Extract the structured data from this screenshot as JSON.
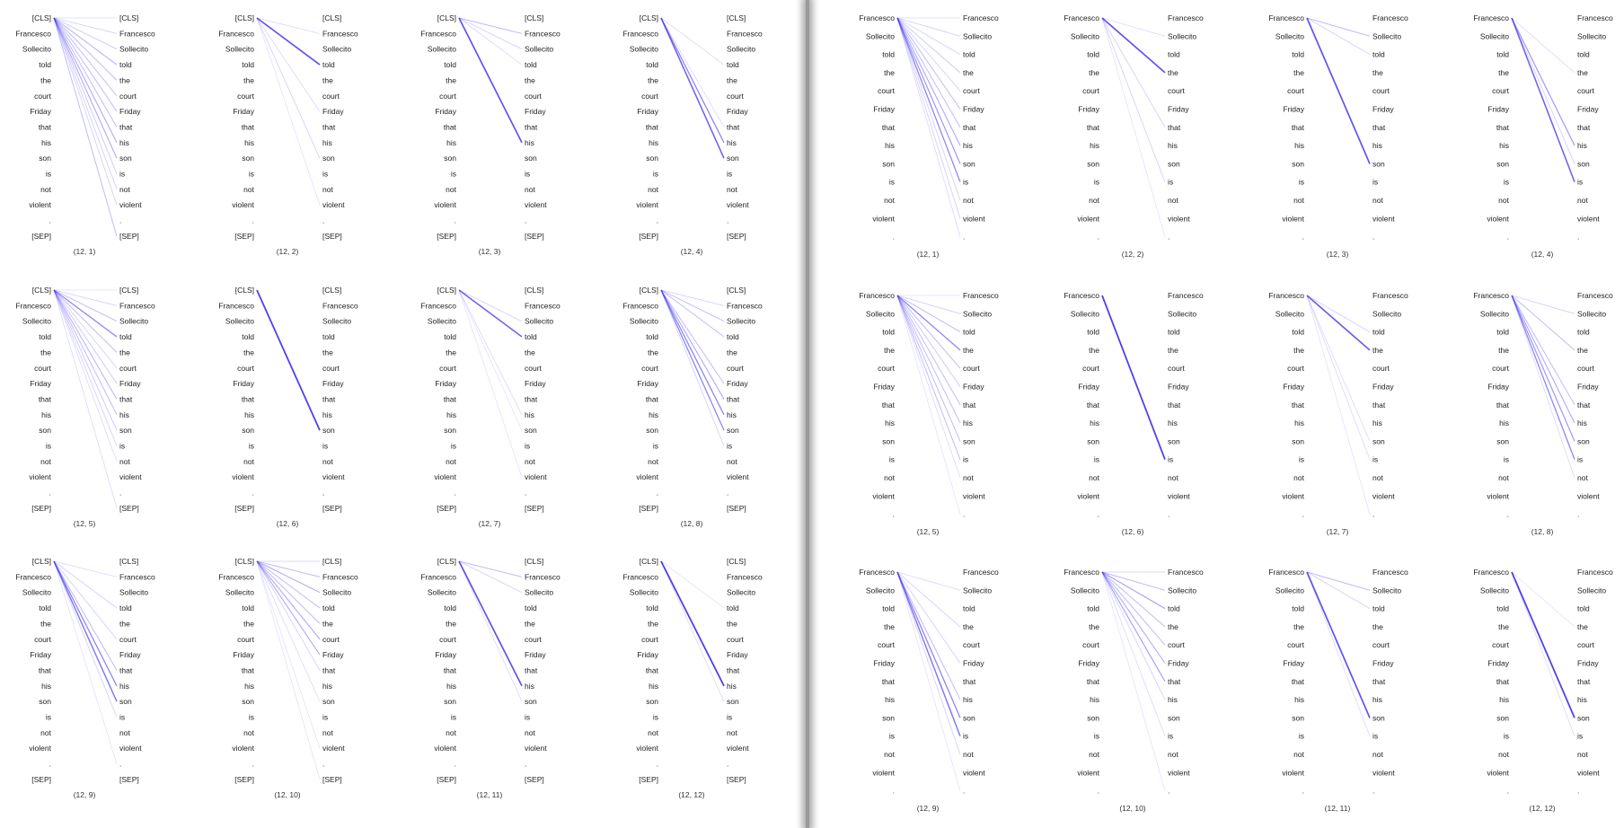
{
  "colors": {
    "edge": "#3b2cf0",
    "text": "#222222",
    "background": "#ffffff"
  },
  "left_tokens": [
    "[CLS]",
    "Francesco",
    "Sollecito",
    "told",
    "the",
    "court",
    "Friday",
    "that",
    "his",
    "son",
    "is",
    "not",
    "violent",
    ".",
    "[SEP]"
  ],
  "right_tokens": [
    "Francesco",
    "Sollecito",
    "told",
    "the",
    "court",
    "Friday",
    "that",
    "his",
    "son",
    "is",
    "not",
    "violent",
    "."
  ],
  "left_panels": [
    {
      "caption": "(12, 1)",
      "edges": [
        [
          0,
          0,
          0.15
        ],
        [
          0,
          1,
          0.2
        ],
        [
          0,
          2,
          0.25
        ],
        [
          0,
          3,
          0.35
        ],
        [
          0,
          4,
          0.3
        ],
        [
          0,
          5,
          0.3
        ],
        [
          0,
          6,
          0.3
        ],
        [
          0,
          7,
          0.3
        ],
        [
          0,
          8,
          0.4
        ],
        [
          0,
          9,
          0.4
        ],
        [
          0,
          10,
          0.25
        ],
        [
          0,
          11,
          0.2
        ],
        [
          0,
          12,
          0.2
        ],
        [
          0,
          14,
          0.3
        ]
      ]
    },
    {
      "caption": "(12, 2)",
      "edges": [
        [
          0,
          3,
          0.9
        ],
        [
          0,
          1,
          0.15
        ],
        [
          0,
          6,
          0.15
        ],
        [
          0,
          9,
          0.2
        ],
        [
          0,
          12,
          0.1
        ]
      ]
    },
    {
      "caption": "(12, 3)",
      "edges": [
        [
          0,
          8,
          0.9
        ],
        [
          0,
          1,
          0.3
        ],
        [
          0,
          2,
          0.2
        ],
        [
          0,
          3,
          0.15
        ]
      ]
    },
    {
      "caption": "(12, 4)",
      "edges": [
        [
          0,
          8,
          0.6
        ],
        [
          0,
          9,
          0.8
        ],
        [
          0,
          3,
          0.15
        ],
        [
          0,
          7,
          0.15
        ]
      ]
    },
    {
      "caption": "(12, 5)",
      "edges": [
        [
          0,
          0,
          0.1
        ],
        [
          0,
          1,
          0.2
        ],
        [
          0,
          2,
          0.3
        ],
        [
          0,
          3,
          0.6
        ],
        [
          0,
          4,
          0.3
        ],
        [
          0,
          5,
          0.2
        ],
        [
          0,
          6,
          0.25
        ],
        [
          0,
          7,
          0.35
        ],
        [
          0,
          8,
          0.3
        ],
        [
          0,
          9,
          0.25
        ],
        [
          0,
          10,
          0.2
        ],
        [
          0,
          11,
          0.15
        ],
        [
          0,
          14,
          0.15
        ]
      ]
    },
    {
      "caption": "(12, 6)",
      "edges": [
        [
          0,
          9,
          1.0
        ]
      ]
    },
    {
      "caption": "(12, 7)",
      "edges": [
        [
          0,
          3,
          0.8
        ],
        [
          0,
          2,
          0.2
        ],
        [
          0,
          8,
          0.15
        ],
        [
          0,
          9,
          0.1
        ],
        [
          0,
          12,
          0.1
        ]
      ]
    },
    {
      "caption": "(12, 8)",
      "edges": [
        [
          0,
          1,
          0.2
        ],
        [
          0,
          2,
          0.3
        ],
        [
          0,
          3,
          0.3
        ],
        [
          0,
          6,
          0.3
        ],
        [
          0,
          7,
          0.4
        ],
        [
          0,
          8,
          0.6
        ],
        [
          0,
          9,
          0.6
        ],
        [
          0,
          10,
          0.2
        ]
      ]
    },
    {
      "caption": "(12, 9)",
      "edges": [
        [
          0,
          1,
          0.15
        ],
        [
          0,
          3,
          0.2
        ],
        [
          0,
          5,
          0.2
        ],
        [
          0,
          7,
          0.3
        ],
        [
          0,
          8,
          0.6
        ],
        [
          0,
          9,
          0.7
        ],
        [
          0,
          10,
          0.2
        ],
        [
          0,
          13,
          0.1
        ]
      ]
    },
    {
      "caption": "(12, 10)",
      "edges": [
        [
          0,
          0,
          0.2
        ],
        [
          0,
          1,
          0.3
        ],
        [
          0,
          2,
          0.4
        ],
        [
          0,
          3,
          0.3
        ],
        [
          0,
          4,
          0.3
        ],
        [
          0,
          5,
          0.4
        ],
        [
          0,
          6,
          0.4
        ],
        [
          0,
          7,
          0.2
        ],
        [
          0,
          9,
          0.15
        ],
        [
          0,
          12,
          0.1
        ],
        [
          0,
          14,
          0.1
        ]
      ]
    },
    {
      "caption": "(12, 11)",
      "edges": [
        [
          0,
          8,
          0.9
        ],
        [
          0,
          1,
          0.3
        ],
        [
          0,
          2,
          0.2
        ],
        [
          0,
          9,
          0.15
        ]
      ]
    },
    {
      "caption": "(12, 12)",
      "edges": [
        [
          0,
          8,
          1.0
        ],
        [
          0,
          9,
          0.15
        ],
        [
          0,
          3,
          0.1
        ]
      ]
    }
  ],
  "right_panels": [
    {
      "caption": "(12, 1)",
      "edges": [
        [
          0,
          0,
          0.15
        ],
        [
          0,
          1,
          0.2
        ],
        [
          0,
          2,
          0.2
        ],
        [
          0,
          3,
          0.25
        ],
        [
          0,
          4,
          0.2
        ],
        [
          0,
          5,
          0.3
        ],
        [
          0,
          6,
          0.3
        ],
        [
          0,
          7,
          0.4
        ],
        [
          0,
          8,
          0.5
        ],
        [
          0,
          9,
          0.6
        ],
        [
          0,
          10,
          0.2
        ],
        [
          0,
          11,
          0.2
        ],
        [
          0,
          12,
          0.15
        ]
      ]
    },
    {
      "caption": "(12, 2)",
      "edges": [
        [
          0,
          3,
          0.9
        ],
        [
          0,
          1,
          0.15
        ],
        [
          0,
          6,
          0.2
        ],
        [
          0,
          9,
          0.2
        ],
        [
          0,
          12,
          0.1
        ]
      ]
    },
    {
      "caption": "(12, 3)",
      "edges": [
        [
          0,
          8,
          0.9
        ],
        [
          0,
          1,
          0.3
        ],
        [
          0,
          2,
          0.2
        ]
      ]
    },
    {
      "caption": "(12, 4)",
      "edges": [
        [
          0,
          7,
          0.5
        ],
        [
          0,
          9,
          0.8
        ],
        [
          0,
          3,
          0.15
        ],
        [
          0,
          8,
          0.2
        ]
      ]
    },
    {
      "caption": "(12, 5)",
      "edges": [
        [
          0,
          0,
          0.1
        ],
        [
          0,
          1,
          0.2
        ],
        [
          0,
          2,
          0.3
        ],
        [
          0,
          3,
          0.6
        ],
        [
          0,
          4,
          0.3
        ],
        [
          0,
          5,
          0.25
        ],
        [
          0,
          6,
          0.3
        ],
        [
          0,
          7,
          0.3
        ],
        [
          0,
          8,
          0.3
        ],
        [
          0,
          9,
          0.3
        ],
        [
          0,
          10,
          0.15
        ],
        [
          0,
          12,
          0.1
        ]
      ]
    },
    {
      "caption": "(12, 6)",
      "edges": [
        [
          0,
          9,
          1.0
        ]
      ]
    },
    {
      "caption": "(12, 7)",
      "edges": [
        [
          0,
          3,
          0.85
        ],
        [
          0,
          2,
          0.2
        ],
        [
          0,
          8,
          0.15
        ],
        [
          0,
          9,
          0.15
        ],
        [
          0,
          12,
          0.1
        ]
      ]
    },
    {
      "caption": "(12, 8)",
      "edges": [
        [
          0,
          1,
          0.2
        ],
        [
          0,
          3,
          0.3
        ],
        [
          0,
          6,
          0.3
        ],
        [
          0,
          7,
          0.4
        ],
        [
          0,
          8,
          0.5
        ],
        [
          0,
          9,
          0.6
        ],
        [
          0,
          10,
          0.15
        ]
      ]
    },
    {
      "caption": "(12, 9)",
      "edges": [
        [
          0,
          1,
          0.15
        ],
        [
          0,
          3,
          0.2
        ],
        [
          0,
          5,
          0.2
        ],
        [
          0,
          7,
          0.3
        ],
        [
          0,
          8,
          0.6
        ],
        [
          0,
          9,
          0.7
        ],
        [
          0,
          10,
          0.2
        ],
        [
          0,
          12,
          0.1
        ]
      ]
    },
    {
      "caption": "(12, 10)",
      "edges": [
        [
          0,
          0,
          0.2
        ],
        [
          0,
          1,
          0.3
        ],
        [
          0,
          2,
          0.45
        ],
        [
          0,
          3,
          0.3
        ],
        [
          0,
          4,
          0.3
        ],
        [
          0,
          5,
          0.4
        ],
        [
          0,
          6,
          0.45
        ],
        [
          0,
          7,
          0.2
        ],
        [
          0,
          9,
          0.15
        ],
        [
          0,
          12,
          0.1
        ]
      ]
    },
    {
      "caption": "(12, 11)",
      "edges": [
        [
          0,
          8,
          0.9
        ],
        [
          0,
          1,
          0.3
        ],
        [
          0,
          2,
          0.2
        ],
        [
          0,
          9,
          0.15
        ]
      ]
    },
    {
      "caption": "(12, 12)",
      "edges": [
        [
          0,
          8,
          1.0
        ],
        [
          0,
          9,
          0.15
        ],
        [
          0,
          3,
          0.1
        ]
      ]
    }
  ]
}
